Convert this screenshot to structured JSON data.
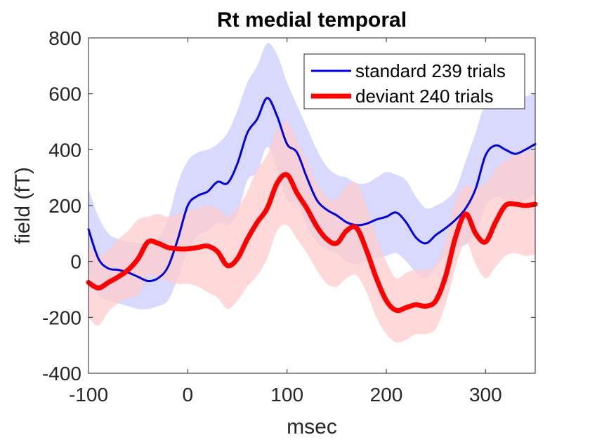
{
  "chart_data": {
    "type": "line",
    "title": "Rt medial temporal",
    "xlabel": "msec",
    "ylabel": "field (fT)",
    "xlim": [
      -100,
      350
    ],
    "ylim": [
      -400,
      800
    ],
    "xticks": [
      -100,
      0,
      100,
      200,
      300
    ],
    "yticks": [
      -400,
      -200,
      0,
      200,
      400,
      600,
      800
    ],
    "xtick_labels": [
      "-100",
      "0",
      "100",
      "200",
      "300"
    ],
    "ytick_labels": [
      "-400",
      "-200",
      "0",
      "200",
      "400",
      "600",
      "800"
    ],
    "grid": false,
    "legend_position": "top-right",
    "x": [
      -100,
      -90,
      -80,
      -70,
      -60,
      -50,
      -40,
      -30,
      -20,
      -10,
      0,
      10,
      20,
      30,
      40,
      50,
      60,
      70,
      80,
      90,
      100,
      110,
      120,
      130,
      140,
      150,
      160,
      170,
      180,
      190,
      200,
      210,
      220,
      230,
      240,
      250,
      260,
      270,
      280,
      290,
      300,
      310,
      320,
      330,
      340,
      350
    ],
    "series": [
      {
        "name": "standard 239 trials",
        "color": "#0000dd",
        "band_color": "#ccccff",
        "line_width": 3,
        "values": [
          115,
          10,
          -25,
          -30,
          -40,
          -55,
          -70,
          -60,
          -20,
          80,
          200,
          235,
          250,
          285,
          280,
          350,
          460,
          510,
          585,
          520,
          420,
          390,
          300,
          220,
          185,
          165,
          140,
          130,
          135,
          150,
          160,
          175,
          140,
          85,
          65,
          95,
          120,
          150,
          190,
          260,
          380,
          415,
          400,
          385,
          400,
          420
        ],
        "upper": [
          260,
          160,
          100,
          80,
          70,
          65,
          60,
          80,
          150,
          280,
          360,
          390,
          400,
          420,
          460,
          540,
          640,
          700,
          780,
          740,
          640,
          560,
          480,
          400,
          340,
          310,
          300,
          280,
          280,
          300,
          320,
          310,
          290,
          230,
          190,
          200,
          220,
          260,
          360,
          460,
          570,
          600,
          590,
          580,
          590,
          600
        ],
        "lower": [
          -40,
          -120,
          -140,
          -150,
          -160,
          -170,
          -170,
          -160,
          -140,
          -60,
          40,
          90,
          110,
          140,
          130,
          170,
          290,
          320,
          410,
          330,
          220,
          210,
          130,
          70,
          40,
          30,
          0,
          -10,
          0,
          10,
          20,
          30,
          0,
          -40,
          -60,
          -20,
          20,
          50,
          60,
          100,
          200,
          230,
          220,
          200,
          220,
          240
        ]
      },
      {
        "name": "deviant 240 trials",
        "color": "#ff0000",
        "band_color": "#ffcccc",
        "line_width": 7,
        "values": [
          -75,
          -95,
          -75,
          -55,
          -30,
          10,
          70,
          65,
          50,
          45,
          45,
          50,
          55,
          35,
          -15,
          10,
          80,
          140,
          190,
          280,
          310,
          245,
          190,
          125,
          80,
          65,
          110,
          120,
          40,
          -60,
          -140,
          -175,
          -165,
          -155,
          -160,
          -140,
          -50,
          90,
          170,
          100,
          70,
          140,
          200,
          205,
          200,
          205
        ],
        "upper": [
          60,
          20,
          40,
          80,
          110,
          150,
          160,
          170,
          160,
          170,
          180,
          190,
          200,
          190,
          160,
          190,
          250,
          330,
          380,
          470,
          500,
          430,
          360,
          280,
          230,
          220,
          270,
          280,
          200,
          90,
          0,
          -60,
          -40,
          -30,
          -30,
          -10,
          80,
          220,
          270,
          260,
          280,
          330,
          360,
          380,
          390,
          395
        ],
        "lower": [
          -200,
          -230,
          -180,
          -150,
          -130,
          -120,
          -50,
          -60,
          -70,
          -80,
          -80,
          -90,
          -110,
          -130,
          -170,
          -140,
          -90,
          -50,
          10,
          110,
          130,
          80,
          30,
          -30,
          -80,
          -90,
          -60,
          -50,
          -110,
          -200,
          -260,
          -290,
          -280,
          -260,
          -260,
          -240,
          -150,
          -20,
          70,
          -10,
          -60,
          -20,
          20,
          30,
          20,
          25
        ]
      }
    ]
  }
}
